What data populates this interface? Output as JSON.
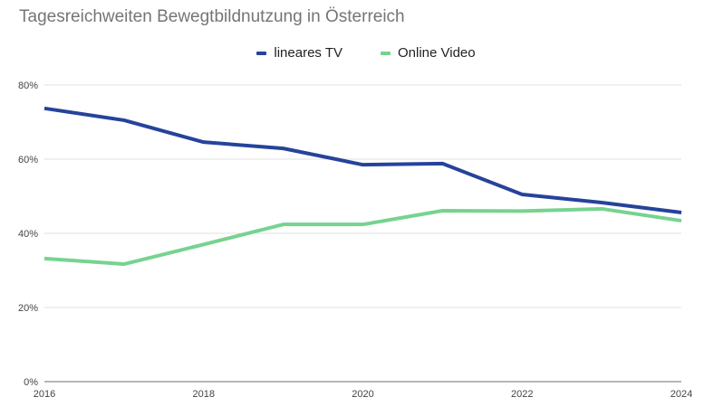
{
  "chart_data": {
    "type": "line",
    "title": "Tagesreichweiten Bewegtbildnutzung in Österreich",
    "xlabel": "",
    "ylabel": "",
    "x": [
      2016,
      2017,
      2018,
      2019,
      2020,
      2021,
      2022,
      2023,
      2024
    ],
    "x_tick_labels": [
      "2016",
      "2018",
      "2020",
      "2022",
      "2024"
    ],
    "y_tick_labels": [
      "0%",
      "20%",
      "40%",
      "60%",
      "80%"
    ],
    "ylim": [
      0,
      80
    ],
    "grid": true,
    "legend_position": "top-center",
    "series": [
      {
        "name": "lineares TV",
        "color": "#26439b",
        "values": [
          73.7,
          70.5,
          64.6,
          62.9,
          58.5,
          58.8,
          50.5,
          48.3,
          45.6
        ]
      },
      {
        "name": "Online Video",
        "color": "#76d38f",
        "values": [
          33.2,
          31.7,
          37.0,
          42.4,
          42.4,
          46.1,
          46.0,
          46.6,
          43.4
        ]
      }
    ]
  }
}
